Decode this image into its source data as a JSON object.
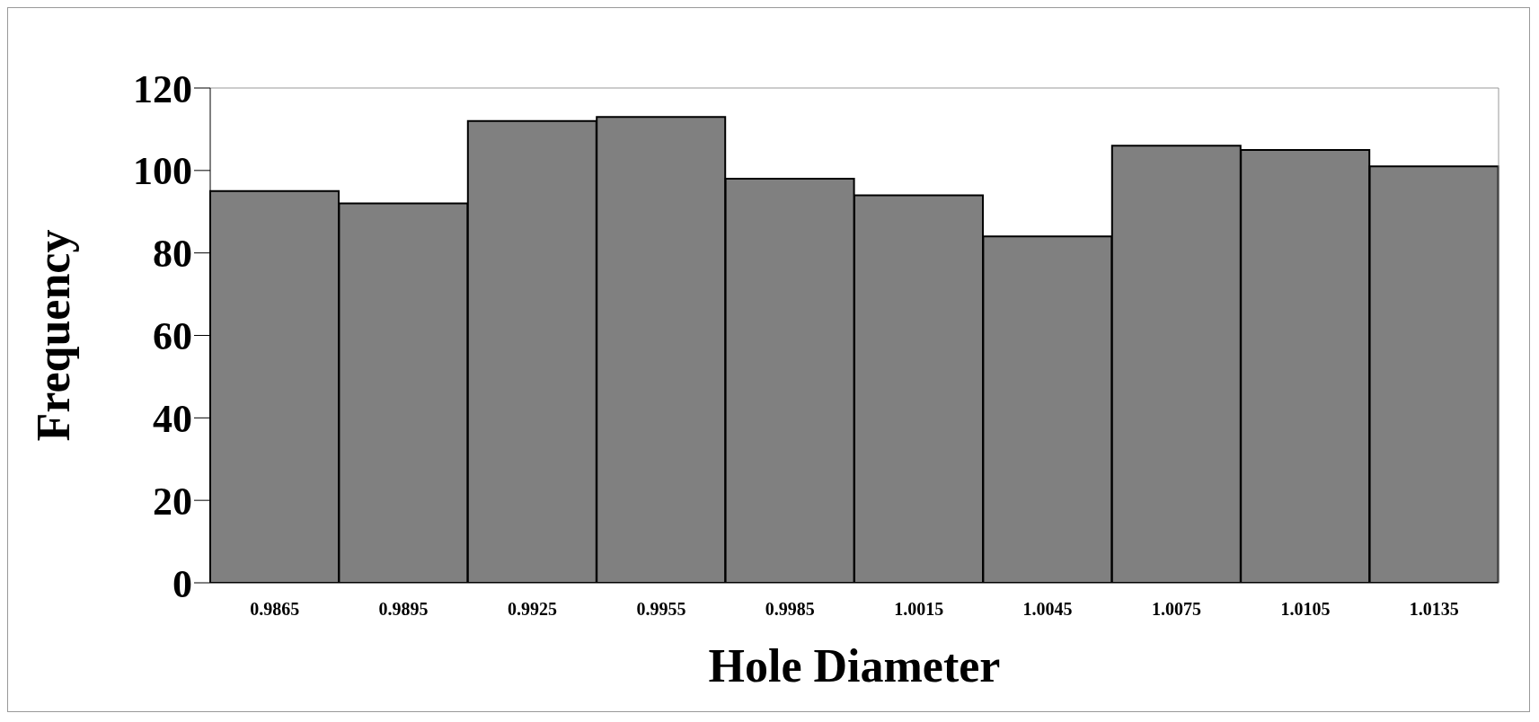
{
  "chart_data": {
    "type": "bar",
    "xlabel": "Hole Diameter",
    "ylabel": "Frequency",
    "categories": [
      "0.9865",
      "0.9895",
      "0.9925",
      "0.9955",
      "0.9985",
      "1.0015",
      "1.0045",
      "1.0075",
      "1.0105",
      "1.0135"
    ],
    "values": [
      95,
      92,
      112,
      113,
      98,
      94,
      84,
      106,
      105,
      101
    ],
    "color": "#808080",
    "ylim": [
      0,
      120
    ],
    "yticks": [
      0,
      20,
      40,
      60,
      80,
      100,
      120
    ],
    "grid": false,
    "legend": false
  }
}
